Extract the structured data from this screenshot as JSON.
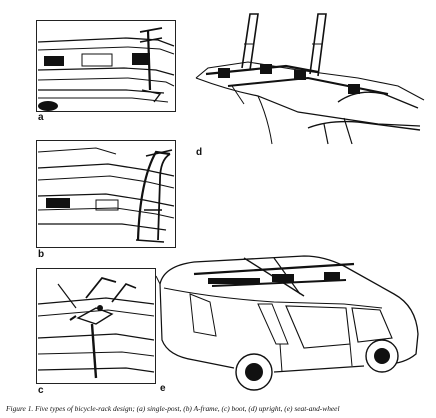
{
  "figure": {
    "panel_labels": {
      "a": "a",
      "b": "b",
      "c": "c",
      "d": "d",
      "e": "e"
    },
    "caption": "Figure 1. Five types of bicycle-rack design; (a) single-post, (b) A-frame, (c) boot, (d) upright, (e) seat-and-wheel"
  }
}
